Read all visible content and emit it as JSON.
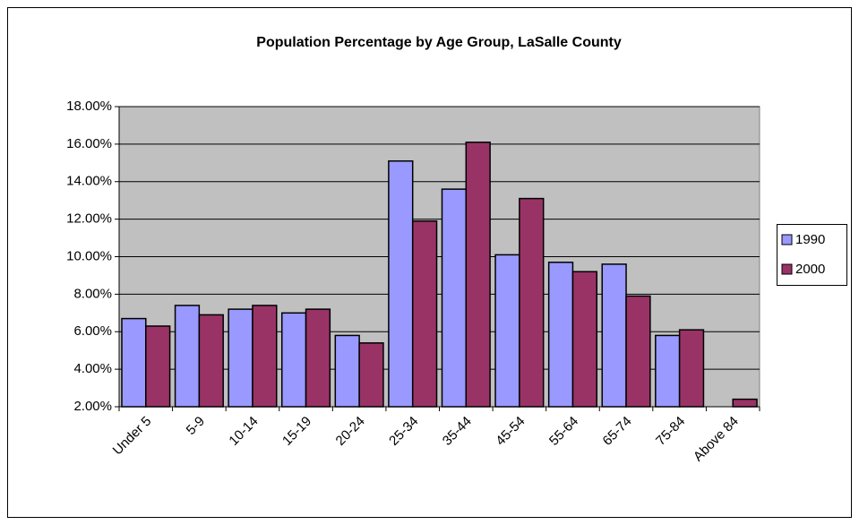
{
  "chart_data": {
    "type": "bar",
    "title": "Population Percentage by Age Group, LaSalle County",
    "categories": [
      "Under 5",
      "5-9",
      "10-14",
      "15-19",
      "20-24",
      "25-34",
      "35-44",
      "45-54",
      "55-64",
      "65-74",
      "75-84",
      "Above 84"
    ],
    "series": [
      {
        "name": "1990",
        "color": "#9999ff",
        "values": [
          6.7,
          7.4,
          7.2,
          7.0,
          5.8,
          15.1,
          13.6,
          10.1,
          9.7,
          9.6,
          5.8,
          null
        ]
      },
      {
        "name": "2000",
        "color": "#993366",
        "values": [
          6.3,
          6.9,
          7.4,
          7.2,
          5.4,
          11.9,
          16.1,
          13.1,
          9.2,
          7.9,
          6.1,
          2.4
        ]
      }
    ],
    "ylim": [
      2,
      18
    ],
    "yticks": [
      {
        "value": 2,
        "label": "2.00%"
      },
      {
        "value": 4,
        "label": "4.00%"
      },
      {
        "value": 6,
        "label": "6.00%"
      },
      {
        "value": 8,
        "label": "8.00%"
      },
      {
        "value": 10,
        "label": "10.00%"
      },
      {
        "value": 12,
        "label": "12.00%"
      },
      {
        "value": 14,
        "label": "14.00%"
      },
      {
        "value": 16,
        "label": "16.00%"
      },
      {
        "value": 18,
        "label": "18.00%"
      }
    ],
    "grid": true,
    "legend": "right"
  }
}
